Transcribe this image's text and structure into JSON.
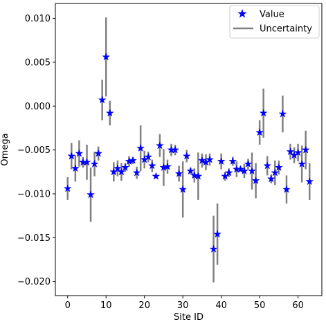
{
  "chart_data": {
    "type": "scatter",
    "title": "",
    "xlabel": "Site ID",
    "ylabel": "Omega",
    "xlim": [
      -3.2,
      66.2
    ],
    "ylim": [
      -0.0216,
      0.0117
    ],
    "xticks": [
      0,
      10,
      20,
      30,
      40,
      50,
      60
    ],
    "yticks": [
      -0.02,
      -0.015,
      -0.01,
      -0.005,
      0.0,
      0.005,
      0.01
    ],
    "ytick_labels": [
      "−0.020",
      "−0.015",
      "−0.010",
      "−0.005",
      "0.000",
      "0.005",
      "0.010"
    ],
    "grid": false,
    "legend_position": "top-right",
    "series": [
      {
        "name": "Value",
        "marker": "star",
        "color": "#0000ff",
        "x": [
          0,
          1,
          2,
          3,
          4,
          5,
          6,
          7,
          8,
          9,
          10,
          11,
          12,
          13,
          14,
          15,
          16,
          17,
          18,
          19,
          20,
          21,
          22,
          23,
          24,
          25,
          26,
          27,
          28,
          29,
          30,
          31,
          32,
          33,
          34,
          35,
          36,
          37,
          38,
          39,
          40,
          41,
          42,
          43,
          44,
          45,
          46,
          47,
          48,
          49,
          50,
          51,
          52,
          53,
          54,
          55,
          56,
          57,
          58,
          59,
          60,
          61,
          62,
          63
        ],
        "y": [
          -0.0094,
          -0.0057,
          -0.0071,
          -0.0054,
          -0.0064,
          -0.0064,
          -0.0101,
          -0.0066,
          -0.0054,
          0.0007,
          0.0056,
          -0.0008,
          -0.0075,
          -0.0071,
          -0.0075,
          -0.007,
          -0.0063,
          -0.0062,
          -0.0076,
          -0.0048,
          -0.0061,
          -0.0058,
          -0.0068,
          -0.008,
          -0.0045,
          -0.007,
          -0.0069,
          -0.005,
          -0.005,
          -0.0077,
          -0.0095,
          -0.0057,
          -0.0074,
          -0.0079,
          -0.008,
          -0.0062,
          -0.0064,
          -0.0061,
          -0.0163,
          -0.0146,
          -0.0063,
          -0.008,
          -0.0076,
          -0.0063,
          -0.0072,
          -0.0072,
          -0.0074,
          -0.0066,
          -0.0074,
          -0.0085,
          -0.003,
          -0.0008,
          -0.0068,
          -0.0083,
          -0.0076,
          -0.007,
          -0.0009,
          -0.0095,
          -0.0052,
          -0.0056,
          -0.0053,
          -0.0066,
          -0.005,
          -0.0086
        ],
        "yerr": [
          0.0013,
          0.0015,
          0.0015,
          0.0015,
          0.0006,
          0.002,
          0.0031,
          0.0014,
          0.0008,
          0.0023,
          0.0045,
          0.0014,
          0.0011,
          0.0009,
          0.001,
          0.0005,
          0.0006,
          0.0004,
          0.0007,
          0.0026,
          0.001,
          0.0006,
          0.0007,
          0.0002,
          0.0013,
          0.0021,
          0.0008,
          0.0007,
          0.0006,
          0.0009,
          0.0032,
          0.0007,
          0.0004,
          0.0008,
          0.0027,
          0.0008,
          0.0009,
          0.0007,
          0.0038,
          0.0035,
          0.0009,
          0.0005,
          0.0005,
          0.0005,
          0.0009,
          0.0003,
          0.0008,
          0.0006,
          0.0021,
          0.002,
          0.0014,
          0.0028,
          0.0011,
          0.0005,
          0.0014,
          0.0008,
          0.0021,
          0.0016,
          0.0009,
          0.0009,
          0.001,
          0.0021,
          0.0022,
          0.0021
        ]
      },
      {
        "name": "Uncertainty",
        "marker": "line",
        "color": "#808080"
      }
    ]
  }
}
